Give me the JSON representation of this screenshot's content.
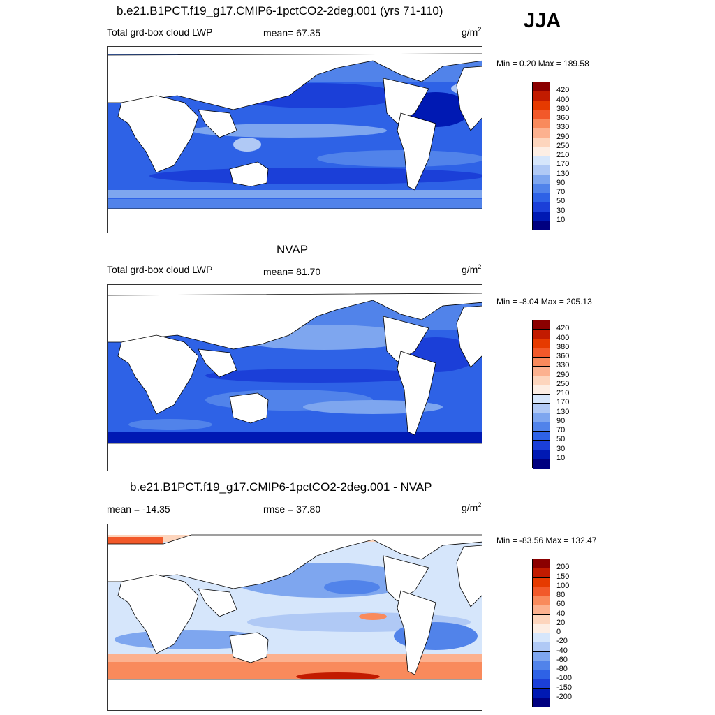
{
  "season": "JJA",
  "panels": [
    {
      "title": "b.e21.B1PCT.f19_g17.CMIP6-1pctCO2-2deg.001 (yrs 71-110)",
      "left_label": "Total grd-box cloud LWP",
      "center_label": "mean=  67.35",
      "unit": "g/m",
      "unit_sup": "2",
      "minmax": "Min =   0.20 Max = 189.58",
      "colorbar": {
        "levels": [
          "420",
          "400",
          "380",
          "360",
          "330",
          "290",
          "250",
          "210",
          "170",
          "130",
          "90",
          "70",
          "50",
          "30",
          "10"
        ],
        "colors": [
          "#8b0000",
          "#c21b00",
          "#e63a00",
          "#f2592a",
          "#f98a5c",
          "#fcb18f",
          "#fdd5bd",
          "#fdeee4",
          "#d6e6fb",
          "#b0c9f5",
          "#7ea6ef",
          "#5183ea",
          "#2e62e6",
          "#1b3fd8",
          "#0019b3",
          "#000080"
        ]
      }
    },
    {
      "title": "NVAP",
      "left_label": "Total grd-box cloud LWP",
      "center_label": "mean=  81.70",
      "unit": "g/m",
      "unit_sup": "2",
      "minmax": "Min =  -8.04 Max = 205.13",
      "colorbar": {
        "levels": [
          "420",
          "400",
          "380",
          "360",
          "330",
          "290",
          "250",
          "210",
          "170",
          "130",
          "90",
          "70",
          "50",
          "30",
          "10"
        ],
        "colors": [
          "#8b0000",
          "#c21b00",
          "#e63a00",
          "#f2592a",
          "#f98a5c",
          "#fcb18f",
          "#fdd5bd",
          "#fdeee4",
          "#d6e6fb",
          "#b0c9f5",
          "#7ea6ef",
          "#5183ea",
          "#2e62e6",
          "#1b3fd8",
          "#0019b3",
          "#000080"
        ]
      }
    },
    {
      "title": "b.e21.B1PCT.f19_g17.CMIP6-1pctCO2-2deg.001 - NVAP",
      "left_label": "mean = -14.35",
      "center_label": "rmse =  37.80",
      "unit": "g/m",
      "unit_sup": "2",
      "minmax": "Min = -83.56 Max = 132.47",
      "colorbar": {
        "levels": [
          "200",
          "150",
          "100",
          "80",
          "60",
          "40",
          "20",
          "0",
          "-20",
          "-40",
          "-60",
          "-80",
          "-100",
          "-150",
          "-200"
        ],
        "colors": [
          "#8b0000",
          "#c21b00",
          "#e63a00",
          "#f2592a",
          "#f98a5c",
          "#fcb18f",
          "#fdd5bd",
          "#fdeee4",
          "#d6e6fb",
          "#b0c9f5",
          "#7ea6ef",
          "#5183ea",
          "#2e62e6",
          "#1b3fd8",
          "#0019b3",
          "#000080"
        ]
      }
    }
  ]
}
